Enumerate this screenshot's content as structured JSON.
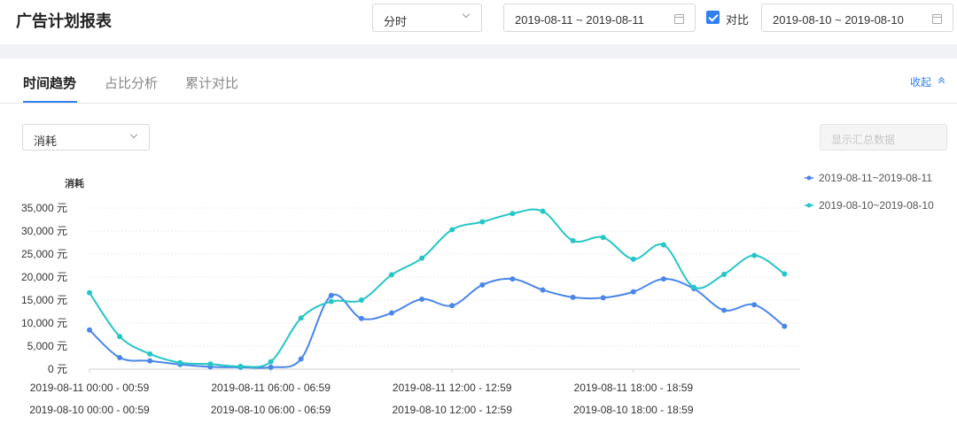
{
  "header": {
    "title": "广告计划报表",
    "granularity_select": "分时",
    "date_range": "2019-08-11 ~ 2019-08-11",
    "compare_checked": true,
    "compare_label": "对比",
    "compare_date_range": "2019-08-10 ~ 2019-08-10"
  },
  "tabs": [
    {
      "label": "时间趋势",
      "active": true
    },
    {
      "label": "占比分析",
      "active": false
    },
    {
      "label": "累计对比",
      "active": false
    }
  ],
  "collapse_label": "收起",
  "metric_select": "消耗",
  "summary_select_placeholder": "显示汇总数据",
  "colors": {
    "primary": "#2f80ed",
    "series1": "#4a86e8",
    "series2": "#26c6c6"
  },
  "chart_data": {
    "type": "line",
    "ylabel": "消耗",
    "ylim": [
      0,
      35000
    ],
    "yticks": [
      "0 元",
      "5,000 元",
      "10,000 元",
      "15,000 元",
      "20,000 元",
      "25,000 元",
      "30,000 元",
      "35,000 元"
    ],
    "x_hours": [
      0,
      1,
      2,
      3,
      4,
      5,
      6,
      7,
      8,
      9,
      10,
      11,
      12,
      13,
      14,
      15,
      16,
      17,
      18,
      19,
      20,
      21,
      22,
      23
    ],
    "x_tick_labels": [
      {
        "hour": 0,
        "line1": "2019-08-11 00:00 - 00:59",
        "line2": "2019-08-10 00:00 - 00:59"
      },
      {
        "hour": 6,
        "line1": "2019-08-11 06:00 - 06:59",
        "line2": "2019-08-10 06:00 - 06:59"
      },
      {
        "hour": 12,
        "line1": "2019-08-11 12:00 - 12:59",
        "line2": "2019-08-10 12:00 - 12:59"
      },
      {
        "hour": 18,
        "line1": "2019-08-11 18:00 - 18:59",
        "line2": "2019-08-10 18:00 - 18:59"
      }
    ],
    "series": [
      {
        "name": "2019-08-11~2019-08-11",
        "color": "#4a86e8",
        "values": [
          8500,
          2500,
          1800,
          1000,
          500,
          400,
          400,
          2200,
          16000,
          11000,
          12200,
          15200,
          13800,
          18300,
          19600,
          17200,
          15600,
          15500,
          16800,
          19600,
          17500,
          12800,
          14000,
          9300
        ]
      },
      {
        "name": "2019-08-10~2019-08-10",
        "color": "#26c6c6",
        "values": [
          16600,
          7100,
          3300,
          1400,
          1100,
          600,
          1600,
          11100,
          14700,
          15000,
          20500,
          24100,
          30300,
          32000,
          33800,
          34300,
          27900,
          28600,
          23900,
          27000,
          17800,
          20600,
          24700,
          20700
        ]
      }
    ],
    "legend_position": "top-right",
    "grid": true
  }
}
